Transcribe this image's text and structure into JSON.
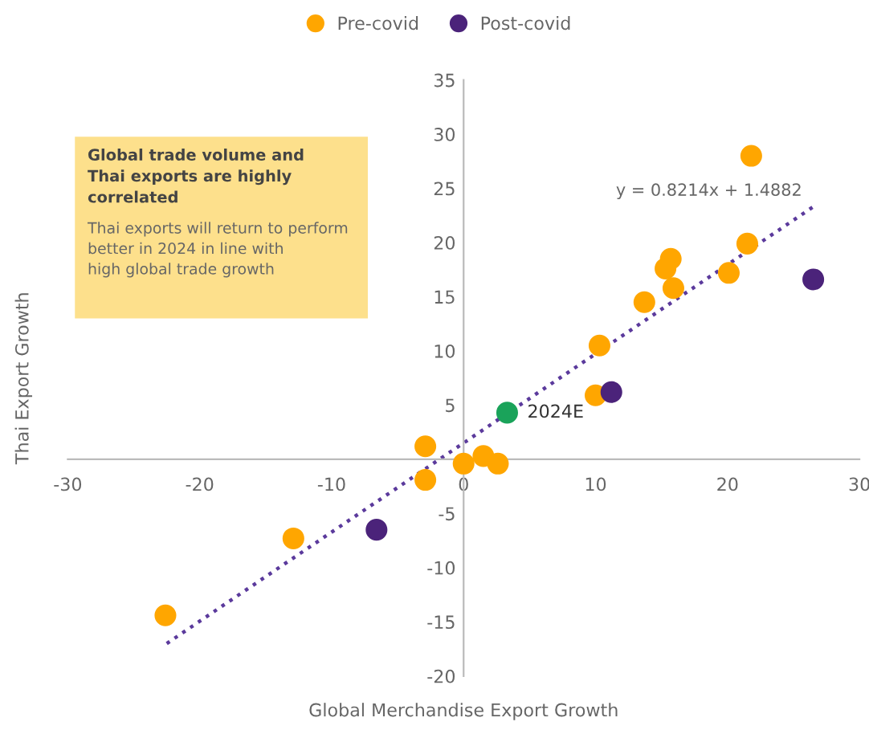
{
  "chart_data": {
    "type": "scatter",
    "xlabel": "Global Merchandise Export Growth",
    "ylabel": "Thai Export Growth",
    "xlim": [
      -30,
      30
    ],
    "xticks": [
      -30,
      -20,
      -10,
      0,
      10,
      20,
      30
    ],
    "ylim": [
      -20,
      35
    ],
    "yticks": [
      -20,
      -15,
      -10,
      -5,
      5,
      10,
      15,
      20,
      25,
      30,
      35
    ],
    "grid": false,
    "legend": "top",
    "marker": "circle",
    "series": [
      {
        "name": "Pre-covid",
        "color": "#ffa600",
        "x": [
          21.8,
          21.5,
          15.7,
          15.3,
          20.1,
          15.9,
          13.7,
          10.3,
          10.0,
          1.5,
          2.6,
          0,
          -2.9,
          -2.9,
          -12.9,
          -22.6
        ],
        "values": [
          28,
          19.9,
          18.5,
          17.6,
          17.2,
          15.8,
          14.5,
          10.5,
          5.9,
          0.3,
          -0.4,
          -0.4,
          1.2,
          -1.9,
          -7.3,
          -14.4
        ]
      },
      {
        "name": "Post-covid",
        "color": "#4b237a",
        "x": [
          11.2,
          26.5,
          -6.6
        ],
        "values": [
          6.2,
          16.6,
          -6.5
        ]
      },
      {
        "name": "2024E",
        "color": "#1aa35a",
        "x": [
          3.3
        ],
        "values": [
          4.3
        ]
      },
      {
        "type": "line",
        "color": "#5b3a9c",
        "line_style": "dotted",
        "marker": "none",
        "x": [
          -22.5,
          26.5
        ],
        "values": [
          -17.0,
          23.3
        ]
      }
    ],
    "annotations": [
      "y = 0.8214x + 1.4882",
      "Global trade volume and\nThai exports are highly\ncorrelated",
      "Thai exports will return to perform\nbetter in 2024 in line with\nhigh global trade growth"
    ]
  }
}
